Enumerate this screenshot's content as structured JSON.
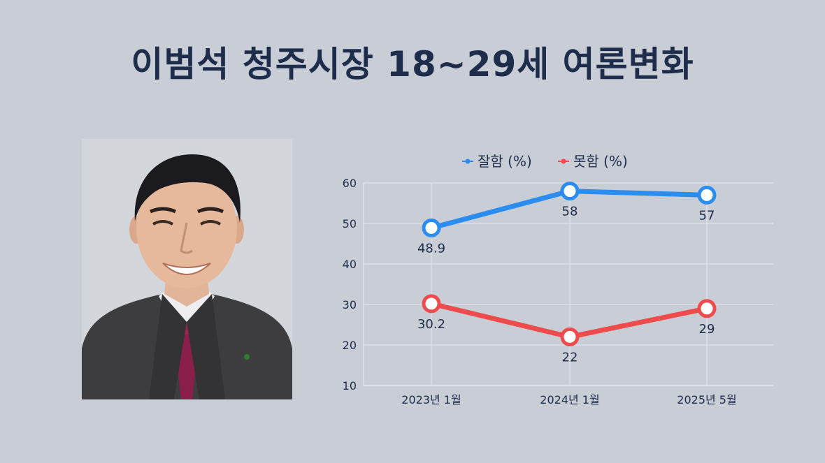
{
  "title": "이범석 청주시장 18~29세 여론변화",
  "chart_data": {
    "type": "line",
    "categories": [
      "2023년 1월",
      "2024년 1월",
      "2025년 5월"
    ],
    "series": [
      {
        "name": "잘함 (%)",
        "color": "#2b8df0",
        "values": [
          48.9,
          58,
          57
        ],
        "labels": [
          "48.9",
          "58",
          "57"
        ]
      },
      {
        "name": "못함 (%)",
        "color": "#ee4c4c",
        "values": [
          30.2,
          22,
          29
        ],
        "labels": [
          "30.2",
          "22",
          "29"
        ]
      }
    ],
    "yticks": [
      10,
      20,
      30,
      40,
      50,
      60
    ],
    "ylim": [
      10,
      60
    ],
    "grid": true,
    "legend_position": "top"
  },
  "colors": {
    "background": "#c9ced6",
    "title": "#1f2d4c",
    "axis_text": "#1f2d4c",
    "grid": "#e6e9ee"
  },
  "portrait": {
    "icon": "person-photo"
  }
}
